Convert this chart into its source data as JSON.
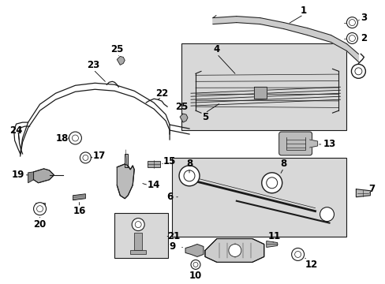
{
  "fig_width": 4.89,
  "fig_height": 3.6,
  "dpi": 100,
  "bg": "#ffffff",
  "lc": "#1a1a1a",
  "gray": "#d8d8d8",
  "label_fs": 7.5,
  "bold_fs": 8.5
}
